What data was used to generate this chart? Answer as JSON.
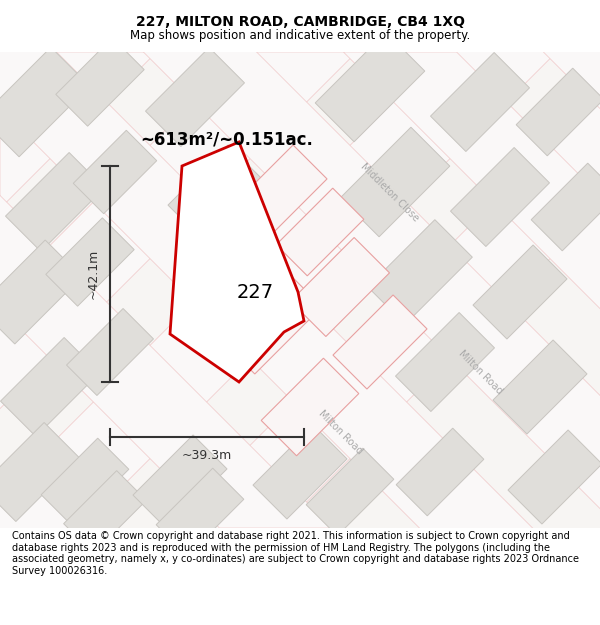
{
  "title": "227, MILTON ROAD, CAMBRIDGE, CB4 1XQ",
  "subtitle": "Map shows position and indicative extent of the property.",
  "footer": "Contains OS data © Crown copyright and database right 2021. This information is subject to Crown copyright and database rights 2023 and is reproduced with the permission of HM Land Registry. The polygons (including the associated geometry, namely x, y co-ordinates) are subject to Crown copyright and database rights 2023 Ordnance Survey 100026316.",
  "area_label": "~613m²/~0.151ac.",
  "width_label": "~39.3m",
  "height_label": "~42.1m",
  "number_label": "227",
  "road_label_1": "Middleton Close",
  "road_label_2": "Milton Road",
  "road_label_3": "Milton Road",
  "title_fontsize": 10,
  "subtitle_fontsize": 8.5,
  "footer_fontsize": 7,
  "bg_color": "#f7f5f3",
  "block_fill": "#e0deda",
  "block_edge": "#c8c5c0",
  "road_fill": "#faf8f8",
  "road_edge": "#f0c8c8",
  "red_edge": "#cc0000",
  "red_fill": "#ffffff",
  "dim_color": "#333333"
}
